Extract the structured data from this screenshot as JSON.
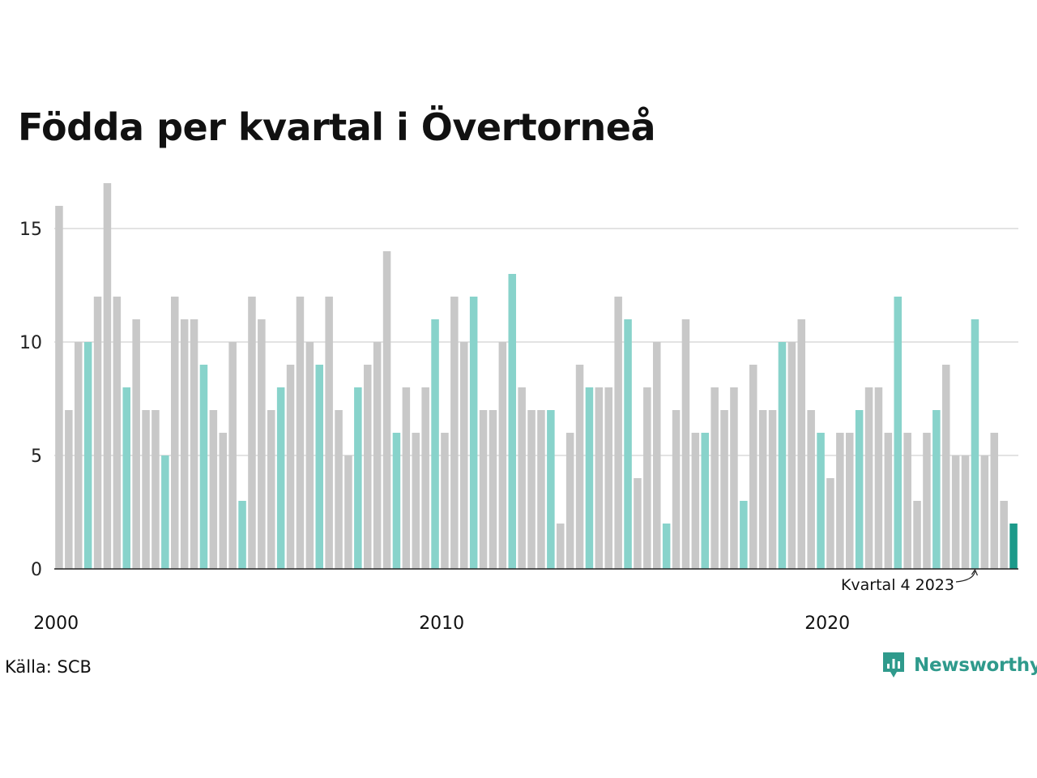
{
  "header": {
    "title": "Födda per kvartal i Övertorneå"
  },
  "footer": {
    "source": "Källa: SCB",
    "brand": "Newsworthy"
  },
  "colors": {
    "default_bar": "#c8c8c8",
    "q4_bar": "#88d3cb",
    "latest_bar": "#1c9a8a",
    "gridline": "#e3e3e3",
    "axis": "#222222",
    "brand": "#2f9a8c"
  },
  "icons": {
    "brand_logo": "newsworthy-logo-icon"
  },
  "chart_data": {
    "type": "bar",
    "title": "Födda per kvartal i Övertorneå",
    "xlabel": "",
    "ylabel": "",
    "ylim": [
      0,
      17
    ],
    "yticks": [
      0,
      5,
      10,
      15
    ],
    "xticks": [
      {
        "label": "2000",
        "index": 0
      },
      {
        "label": "2010",
        "index": 40
      },
      {
        "label": "2020",
        "index": 80
      }
    ],
    "grid": true,
    "highlight_rule": "Q4 bars highlighted, latest bar darker",
    "start": "2000 Q1",
    "values": [
      16,
      7,
      10,
      10,
      12,
      17,
      12,
      8,
      11,
      7,
      7,
      5,
      12,
      11,
      11,
      9,
      7,
      6,
      10,
      3,
      12,
      11,
      7,
      8,
      9,
      12,
      10,
      9,
      12,
      7,
      5,
      8,
      9,
      10,
      14,
      6,
      8,
      6,
      8,
      11,
      6,
      12,
      10,
      12,
      7,
      7,
      10,
      13,
      8,
      7,
      7,
      7,
      2,
      6,
      9,
      8,
      8,
      8,
      12,
      11,
      4,
      8,
      10,
      2,
      7,
      11,
      6,
      6,
      8,
      7,
      8,
      3,
      9,
      7,
      7,
      10,
      10,
      11,
      7,
      6,
      4,
      6,
      6,
      7,
      8,
      8,
      6,
      12,
      6,
      3,
      6,
      7,
      9,
      5,
      5,
      11,
      5,
      6,
      3,
      2
    ],
    "annotation": {
      "text": "Kvartal 4 2023",
      "index": 95
    }
  }
}
